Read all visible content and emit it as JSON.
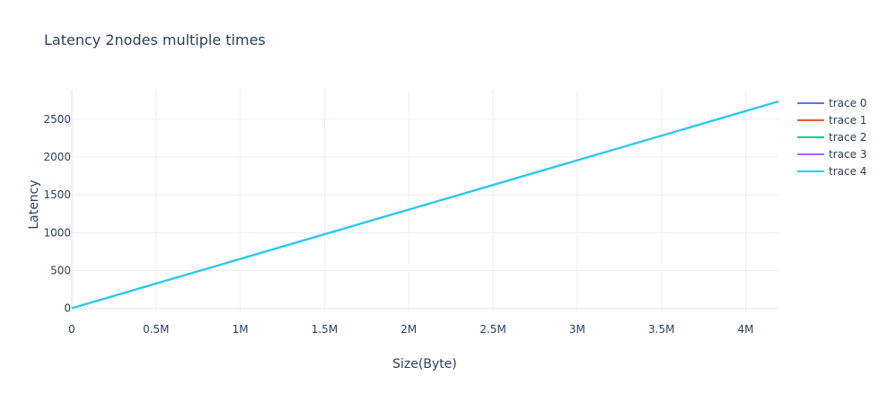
{
  "chart_data": {
    "type": "line",
    "title": "Latency 2nodes  multiple times",
    "xlabel": "Size(Byte)",
    "ylabel": "Latency",
    "xlim": [
      0,
      4194304
    ],
    "ylim": [
      -40,
      2890
    ],
    "x_ticks": [
      {
        "value": 0,
        "label": "0"
      },
      {
        "value": 500000,
        "label": "0.5M"
      },
      {
        "value": 1000000,
        "label": "1M"
      },
      {
        "value": 1500000,
        "label": "1.5M"
      },
      {
        "value": 2000000,
        "label": "2M"
      },
      {
        "value": 2500000,
        "label": "2.5M"
      },
      {
        "value": 3000000,
        "label": "3M"
      },
      {
        "value": 3500000,
        "label": "3.5M"
      },
      {
        "value": 4000000,
        "label": "4M"
      }
    ],
    "y_ticks": [
      {
        "value": 0,
        "label": "0"
      },
      {
        "value": 500,
        "label": "500"
      },
      {
        "value": 1000,
        "label": "1000"
      },
      {
        "value": 1500,
        "label": "1500"
      },
      {
        "value": 2000,
        "label": "2000"
      },
      {
        "value": 2500,
        "label": "2500"
      }
    ],
    "grid": true,
    "legend_position": "top-right",
    "series": [
      {
        "name": "trace 0",
        "color": "#636efa",
        "x": [
          0,
          4194304
        ],
        "y": [
          2,
          2735
        ]
      },
      {
        "name": "trace 1",
        "color": "#ef553b",
        "x": [
          0,
          4194304
        ],
        "y": [
          2,
          2735
        ]
      },
      {
        "name": "trace 2",
        "color": "#00cc96",
        "x": [
          0,
          4194304
        ],
        "y": [
          2,
          2735
        ]
      },
      {
        "name": "trace 3",
        "color": "#ab63fa",
        "x": [
          0,
          4194304
        ],
        "y": [
          2,
          2735
        ]
      },
      {
        "name": "trace 4",
        "color": "#19d3f3",
        "x": [
          0,
          4194304
        ],
        "y": [
          2,
          2735
        ]
      }
    ]
  }
}
